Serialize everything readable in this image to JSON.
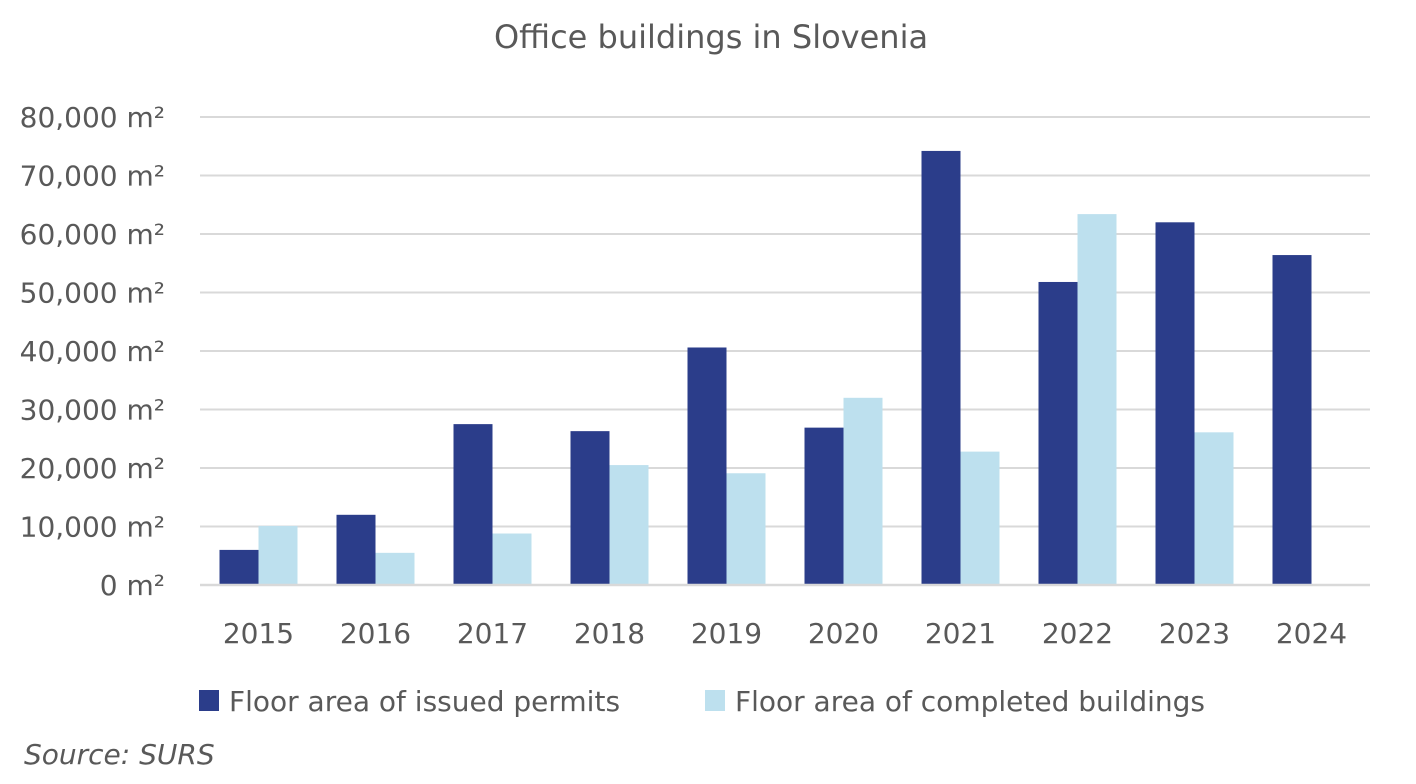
{
  "chart_data": {
    "type": "bar",
    "title": "Office buildings in Slovenia",
    "xlabel": "",
    "ylabel": "",
    "categories": [
      "2015",
      "2016",
      "2017",
      "2018",
      "2019",
      "2020",
      "2021",
      "2022",
      "2023",
      "2024"
    ],
    "series": [
      {
        "name": "Floor area of issued permits",
        "color": "#2b3d8a",
        "values": [
          6000,
          12000,
          27500,
          26300,
          40600,
          26900,
          74200,
          51800,
          62000,
          56400
        ]
      },
      {
        "name": "Floor area of completed buildings",
        "color": "#bde0ee",
        "values": [
          10100,
          5500,
          8800,
          20500,
          19100,
          32000,
          22800,
          63400,
          26100,
          null
        ]
      }
    ],
    "ylim": [
      0,
      80000
    ],
    "yticks": [
      0,
      10000,
      20000,
      30000,
      40000,
      50000,
      60000,
      70000,
      80000
    ],
    "ytick_labels": [
      "0 m²",
      "10,000 m²",
      "20,000 m²",
      "30,000 m²",
      "40,000 m²",
      "50,000 m²",
      "60,000 m²",
      "70,000 m²",
      "80,000 m²"
    ],
    "grid": true,
    "gridColor": "#d9d9d9",
    "legend_position": "bottom"
  },
  "source": "Source: SURS"
}
